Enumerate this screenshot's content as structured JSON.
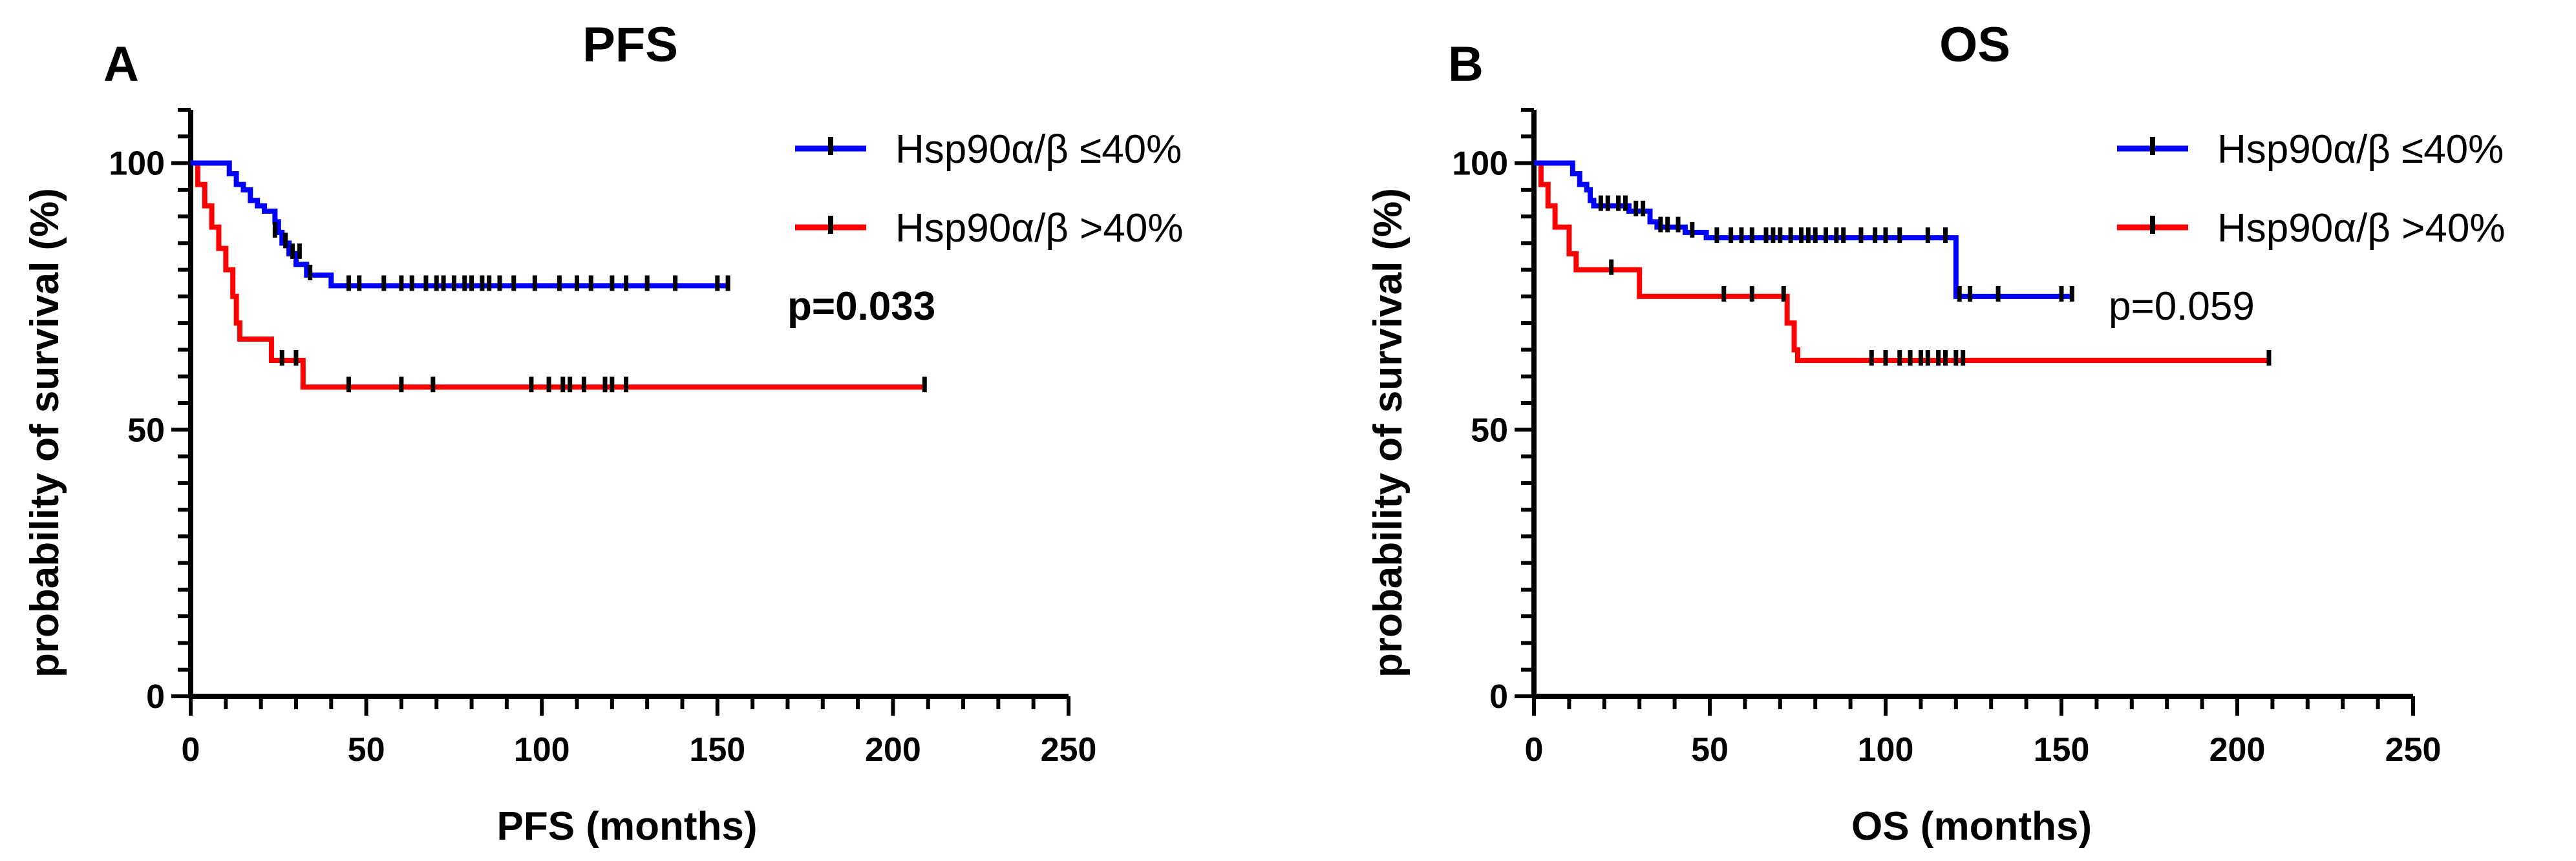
{
  "chart_data": [
    {
      "type": "line",
      "panel": "A",
      "title": "PFS",
      "xlabel": "PFS (months)",
      "ylabel": "probability of survival  (%)",
      "xlim": [
        0,
        250
      ],
      "ylim": [
        0,
        110
      ],
      "xticks": [
        0,
        50,
        100,
        150,
        200,
        250
      ],
      "yticks": [
        0,
        50,
        100
      ],
      "p_value": "p=0.033",
      "p_value_style": "bold",
      "series": [
        {
          "name": "Hsp90α/β ≤40%",
          "color": "#0000ff",
          "steps": [
            [
              0,
              100
            ],
            [
              9,
              100
            ],
            [
              11,
              98
            ],
            [
              13,
              96
            ],
            [
              15,
              95
            ],
            [
              17,
              93
            ],
            [
              19,
              92
            ],
            [
              21,
              91
            ],
            [
              24,
              89
            ],
            [
              25,
              87
            ],
            [
              26,
              85
            ],
            [
              28,
              83
            ],
            [
              30,
              81
            ],
            [
              33,
              79
            ],
            [
              40,
              77
            ],
            [
              153,
              77
            ]
          ],
          "censored": [
            [
              24,
              87
            ],
            [
              27,
              85
            ],
            [
              29,
              83
            ],
            [
              31,
              83
            ],
            [
              34,
              79
            ],
            [
              45,
              77
            ],
            [
              48,
              77
            ],
            [
              55,
              77
            ],
            [
              60,
              77
            ],
            [
              63,
              77
            ],
            [
              67,
              77
            ],
            [
              70,
              77
            ],
            [
              72,
              77
            ],
            [
              75,
              77
            ],
            [
              78,
              77
            ],
            [
              80,
              77
            ],
            [
              83,
              77
            ],
            [
              85,
              77
            ],
            [
              88,
              77
            ],
            [
              92,
              77
            ],
            [
              98,
              77
            ],
            [
              105,
              77
            ],
            [
              110,
              77
            ],
            [
              114,
              77
            ],
            [
              120,
              77
            ],
            [
              124,
              77
            ],
            [
              130,
              77
            ],
            [
              138,
              77
            ],
            [
              150,
              77
            ],
            [
              153,
              77
            ]
          ]
        },
        {
          "name": "Hsp90α/β >40%",
          "color": "#ff0000",
          "steps": [
            [
              0,
              100
            ],
            [
              2,
              96
            ],
            [
              4,
              92
            ],
            [
              6,
              88
            ],
            [
              8,
              84
            ],
            [
              10,
              80
            ],
            [
              12,
              75
            ],
            [
              13,
              70
            ],
            [
              14,
              67
            ],
            [
              23,
              63
            ],
            [
              32,
              58
            ],
            [
              209,
              58
            ]
          ],
          "censored": [
            [
              26,
              63
            ],
            [
              30,
              63
            ],
            [
              45,
              58
            ],
            [
              60,
              58
            ],
            [
              69,
              58
            ],
            [
              97,
              58
            ],
            [
              102,
              58
            ],
            [
              106,
              58
            ],
            [
              108,
              58
            ],
            [
              112,
              58
            ],
            [
              118,
              58
            ],
            [
              120,
              58
            ],
            [
              124,
              58
            ],
            [
              209,
              58
            ]
          ]
        }
      ]
    },
    {
      "type": "line",
      "panel": "B",
      "title": "OS",
      "xlabel": "OS (months)",
      "ylabel": "probability of survival  (%)",
      "xlim": [
        0,
        250
      ],
      "ylim": [
        0,
        110
      ],
      "xticks": [
        0,
        50,
        100,
        150,
        200,
        250
      ],
      "yticks": [
        0,
        50,
        100
      ],
      "p_value": "p=0.059",
      "p_value_style": "normal",
      "series": [
        {
          "name": "Hsp90α/β ≤40%",
          "color": "#0000ff",
          "steps": [
            [
              0,
              100
            ],
            [
              9,
              100
            ],
            [
              11,
              98
            ],
            [
              13,
              96
            ],
            [
              15,
              95
            ],
            [
              16,
              93
            ],
            [
              17,
              92
            ],
            [
              27,
              91
            ],
            [
              33,
              89
            ],
            [
              35,
              88
            ],
            [
              43,
              87
            ],
            [
              49,
              86
            ],
            [
              119,
              86
            ],
            [
              120,
              75
            ],
            [
              153,
              75
            ]
          ],
          "censored": [
            [
              19,
              92
            ],
            [
              21,
              92
            ],
            [
              24,
              92
            ],
            [
              26,
              92
            ],
            [
              29,
              91
            ],
            [
              31,
              91
            ],
            [
              36,
              88
            ],
            [
              38,
              88
            ],
            [
              41,
              88
            ],
            [
              45,
              87
            ],
            [
              52,
              86
            ],
            [
              56,
              86
            ],
            [
              59,
              86
            ],
            [
              62,
              86
            ],
            [
              66,
              86
            ],
            [
              68,
              86
            ],
            [
              70,
              86
            ],
            [
              73,
              86
            ],
            [
              76,
              86
            ],
            [
              78,
              86
            ],
            [
              80,
              86
            ],
            [
              83,
              86
            ],
            [
              86,
              86
            ],
            [
              88,
              86
            ],
            [
              93,
              86
            ],
            [
              97,
              86
            ],
            [
              100,
              86
            ],
            [
              104,
              86
            ],
            [
              112,
              86
            ],
            [
              117,
              86
            ],
            [
              121,
              75
            ],
            [
              124,
              75
            ],
            [
              132,
              75
            ],
            [
              150,
              75
            ],
            [
              153,
              75
            ]
          ]
        },
        {
          "name": "Hsp90α/β >40%",
          "color": "#ff0000",
          "steps": [
            [
              0,
              100
            ],
            [
              2,
              96
            ],
            [
              4,
              92
            ],
            [
              6,
              88
            ],
            [
              10,
              83
            ],
            [
              12,
              80
            ],
            [
              30,
              75
            ],
            [
              72,
              70
            ],
            [
              74,
              65
            ],
            [
              75,
              63
            ],
            [
              209,
              63
            ]
          ],
          "censored": [
            [
              22,
              80
            ],
            [
              54,
              75
            ],
            [
              62,
              75
            ],
            [
              71,
              75
            ],
            [
              96,
              63
            ],
            [
              100,
              63
            ],
            [
              104,
              63
            ],
            [
              107,
              63
            ],
            [
              110,
              63
            ],
            [
              112,
              63
            ],
            [
              115,
              63
            ],
            [
              117,
              63
            ],
            [
              120,
              63
            ],
            [
              122,
              63
            ],
            [
              209,
              63
            ]
          ]
        }
      ]
    }
  ]
}
